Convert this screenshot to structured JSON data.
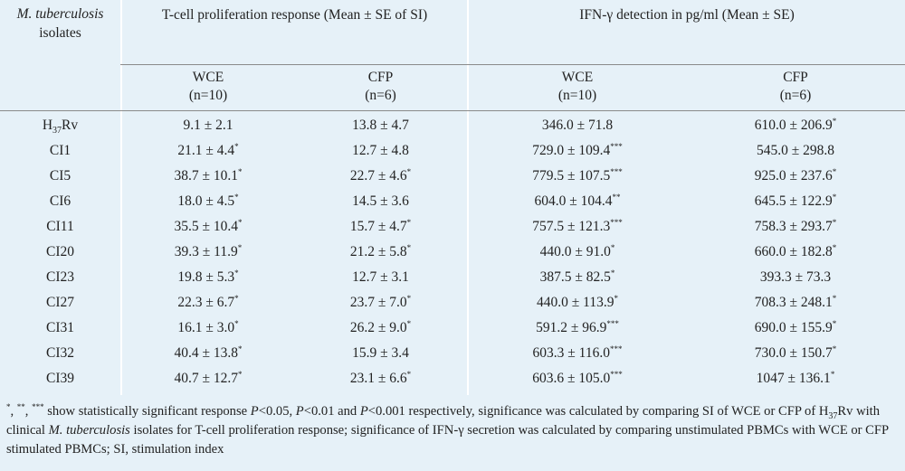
{
  "header": {
    "isolates_label_italic": "M. tuberculosis",
    "isolates_label_rest": "isolates",
    "tcell_group": "T-cell proliferation response (Mean ± SE of SI)",
    "ifn_group_pre": "IFN-",
    "ifn_group_gamma": "γ",
    "ifn_group_post": " detection in pg/ml (Mean ± SE)",
    "sub_cols": [
      {
        "name": "WCE",
        "n": "(n=10)"
      },
      {
        "name": "CFP",
        "n": "(n=6)"
      },
      {
        "name": "WCE",
        "n": "(n=10)"
      },
      {
        "name": "CFP",
        "n": "(n=6)"
      }
    ]
  },
  "rows": [
    {
      "isolate": "H",
      "isolate_sub": "37",
      "isolate_post": "Rv",
      "c1": "9.1 ± 2.1",
      "s1": "",
      "c2": "13.8 ± 4.7",
      "s2": "",
      "c3": "346.0 ± 71.8",
      "s3": "",
      "c4": "610.0 ± 206.9",
      "s4": "*"
    },
    {
      "isolate": "CI1",
      "isolate_sub": "",
      "isolate_post": "",
      "c1": "21.1 ± 4.4",
      "s1": "*",
      "c2": "12.7 ± 4.8",
      "s2": "",
      "c3": "729.0 ± 109.4",
      "s3": "***",
      "c4": "545.0 ± 298.8",
      "s4": ""
    },
    {
      "isolate": "CI5",
      "isolate_sub": "",
      "isolate_post": "",
      "c1": "38.7 ± 10.1",
      "s1": "*",
      "c2": "22.7 ± 4.6",
      "s2": "*",
      "c3": "779.5 ± 107.5",
      "s3": "***",
      "c4": "925.0 ± 237.6",
      "s4": "*"
    },
    {
      "isolate": "CI6",
      "isolate_sub": "",
      "isolate_post": "",
      "c1": "18.0 ± 4.5",
      "s1": "*",
      "c2": "14.5 ± 3.6",
      "s2": "",
      "c3": "604.0 ± 104.4",
      "s3": "**",
      "c4": "645.5 ± 122.9",
      "s4": "*"
    },
    {
      "isolate": "CI11",
      "isolate_sub": "",
      "isolate_post": "",
      "c1": "35.5 ± 10.4",
      "s1": "*",
      "c2": "15.7 ± 4.7",
      "s2": "*",
      "c3": "757.5 ± 121.3",
      "s3": "***",
      "c4": "758.3 ± 293.7",
      "s4": "*"
    },
    {
      "isolate": "CI20",
      "isolate_sub": "",
      "isolate_post": "",
      "c1": "39.3 ± 11.9",
      "s1": "*",
      "c2": "21.2 ± 5.8",
      "s2": "*",
      "c3": "440.0 ± 91.0",
      "s3": "*",
      "c4": "660.0 ± 182.8",
      "s4": "*"
    },
    {
      "isolate": "CI23",
      "isolate_sub": "",
      "isolate_post": "",
      "c1": "19.8 ± 5.3",
      "s1": "*",
      "c2": "12.7 ± 3.1",
      "s2": "",
      "c3": "387.5 ± 82.5",
      "s3": "*",
      "c4": "393.3 ± 73.3",
      "s4": ""
    },
    {
      "isolate": "CI27",
      "isolate_sub": "",
      "isolate_post": "",
      "c1": "22.3 ± 6.7",
      "s1": "*",
      "c2": "23.7 ± 7.0",
      "s2": "*",
      "c3": "440.0 ± 113.9",
      "s3": "*",
      "c4": "708.3 ± 248.1",
      "s4": "*"
    },
    {
      "isolate": "CI31",
      "isolate_sub": "",
      "isolate_post": "",
      "c1": "16.1 ± 3.0",
      "s1": "*",
      "c2": "26.2 ± 9.0",
      "s2": "*",
      "c3": "591.2 ± 96.9",
      "s3": "***",
      "c4": "690.0 ± 155.9",
      "s4": "*"
    },
    {
      "isolate": "CI32",
      "isolate_sub": "",
      "isolate_post": "",
      "c1": "40.4 ± 13.8",
      "s1": "*",
      "c2": "15.9 ± 3.4",
      "s2": "",
      "c3": "603.3 ± 116.0",
      "s3": "***",
      "c4": "730.0 ± 150.7",
      "s4": "*"
    },
    {
      "isolate": "CI39",
      "isolate_sub": "",
      "isolate_post": "",
      "c1": "40.7 ± 12.7",
      "s1": "*",
      "c2": "23.1 ± 6.6",
      "s2": "*",
      "c3": "603.6 ± 105.0",
      "s3": "***",
      "c4": "1047 ± 136.1",
      "s4": "*"
    }
  ],
  "footnote": {
    "marks_1": "*",
    "sep_1": ", ",
    "marks_2": "**",
    "sep_2": ", ",
    "marks_3": "***",
    "part1": " show statistically significant response ",
    "p1": "P",
    "part2": "<0.05, ",
    "p2": "P",
    "part3": "<0.01 and ",
    "p3": "P",
    "part4": "<0.001 respectively, significance was calculated by comparing SI of WCE or CFP of H",
    "h_sub": "37",
    "part5": "Rv with clinical ",
    "species": "M. tuberculosis",
    "part6": " isolates for T-cell proliferation response; significance of IFN-",
    "gamma": "γ",
    "part7": " secretion was calculated by comparing unstimulated PBMCs with WCE or CFP stimulated PBMCs; SI, stimulation index"
  },
  "colors": {
    "background": "#e6f1f8",
    "rule": "#8a8a8a",
    "divider": "#ffffff"
  }
}
